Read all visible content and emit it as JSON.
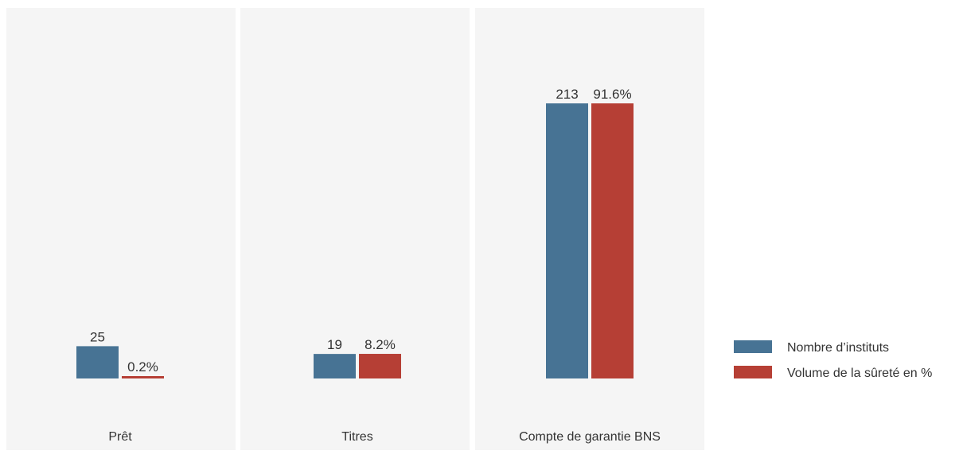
{
  "chart_data": {
    "type": "bar",
    "categories": [
      "Prêt",
      "Titres",
      "Compte de garantie BNS"
    ],
    "series": [
      {
        "name": "Nombre d’instituts",
        "values": [
          25,
          19,
          213
        ],
        "labels": [
          "25",
          "19",
          "213"
        ],
        "color": "#477394"
      },
      {
        "name": "Volume de la sûreté en %",
        "values": [
          0.2,
          8.2,
          91.6
        ],
        "labels": [
          "0.2%",
          "8.2%",
          "91.6%"
        ],
        "color": "#b63f35"
      }
    ],
    "grid": false,
    "legend": "right",
    "panel_background": "#f5f5f5",
    "scale_note": "Each series uses its own implicit scale: 213 institutions drawn to the same height as 91.6%."
  }
}
